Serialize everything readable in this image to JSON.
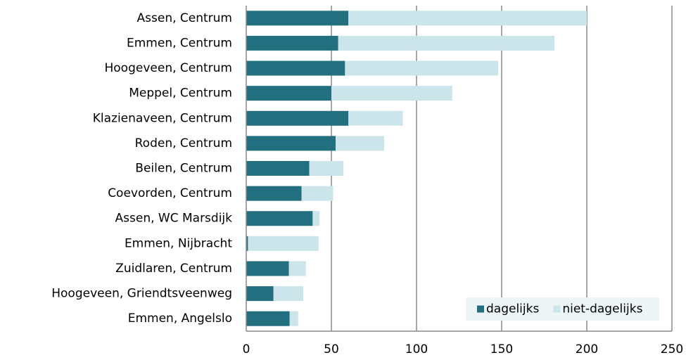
{
  "chart_data": {
    "type": "barh_stacked",
    "categories": [
      "Assen, Centrum",
      "Emmen, Centrum",
      "Hoogeveen, Centrum",
      "Meppel, Centrum",
      "Klazienaveen, Centrum",
      "Roden, Centrum",
      "Beilen, Centrum",
      "Coevorden, Centrum",
      "Assen, WC Marsdijk",
      "Emmen, Nijbracht",
      "Zuidlaren, Centrum",
      "Hoogeveen, Griendtsveenweg",
      "Emmen, Angelslo"
    ],
    "series": [
      {
        "name": "dagelijks",
        "color": "#226f80",
        "values": [
          60,
          54,
          58,
          50,
          60,
          52.5,
          37,
          32.5,
          39,
          1,
          25,
          16,
          25.5
        ]
      },
      {
        "name": "niet-dagelijks",
        "color": "#cbe5eb",
        "values": [
          140,
          127,
          90,
          71,
          32,
          28.5,
          20,
          18.5,
          4,
          41.5,
          10,
          17.5,
          5
        ]
      }
    ],
    "xlim": [
      0,
      250
    ],
    "xticks": [
      0,
      50,
      100,
      150,
      200,
      250
    ],
    "grid": true,
    "legend": "lower right"
  }
}
